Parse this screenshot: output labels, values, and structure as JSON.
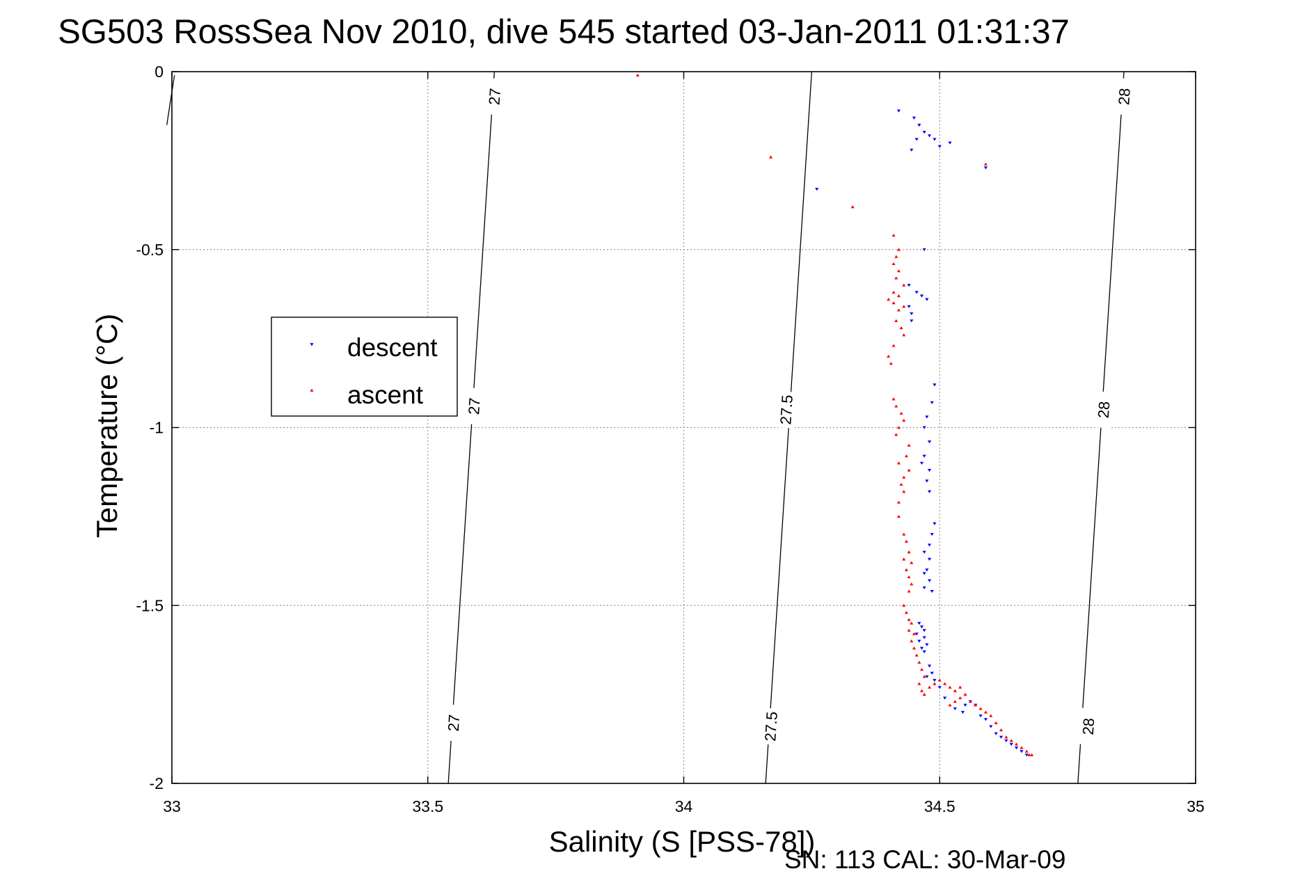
{
  "chart_data": {
    "type": "scatter",
    "title": "SG503 RossSea Nov 2010, dive 545 started 03-Jan-2011 01:31:37",
    "xlabel": "Salinity (S [PSS-78])",
    "ylabel": "Temperature (°C)",
    "footer": "SN: 113  CAL: 30-Mar-09",
    "xlim": [
      33,
      35
    ],
    "ylim": [
      -2,
      0
    ],
    "x_ticks": [
      33,
      33.5,
      34,
      34.5,
      35
    ],
    "x_tick_labels": [
      "33",
      "33.5",
      "34",
      "34.5",
      "35"
    ],
    "y_ticks": [
      0,
      -0.5,
      -1,
      -1.5,
      -2
    ],
    "y_tick_labels": [
      "0",
      "-0.5",
      "-1",
      "-1.5",
      "-2"
    ],
    "grid": true,
    "legend_position": "left-center",
    "colors": {
      "descent": "#0000ff",
      "ascent": "#ff0000",
      "contour": "#000000",
      "grid": "#9a9a9a"
    },
    "density_contours": [
      {
        "label": "27",
        "points": [
          [
            33.005,
            -0.01
          ],
          [
            32.99,
            -0.15
          ]
        ],
        "label_points": []
      },
      {
        "label": "27",
        "points": [
          [
            33.63,
            0
          ],
          [
            33.54,
            -2
          ]
        ],
        "label_points": [
          [
            33.63,
            -0.07
          ],
          [
            33.59,
            -0.94
          ],
          [
            33.55,
            -1.83
          ]
        ]
      },
      {
        "label": "27.5",
        "points": [
          [
            34.25,
            0
          ],
          [
            34.16,
            -2
          ]
        ],
        "label_points": [
          [
            34.2,
            -0.95
          ],
          [
            34.17,
            -1.84
          ]
        ]
      },
      {
        "label": "28",
        "points": [
          [
            34.86,
            0
          ],
          [
            34.77,
            -2
          ]
        ],
        "label_points": [
          [
            34.86,
            -0.07
          ],
          [
            34.82,
            -0.95
          ],
          [
            34.79,
            -1.84
          ]
        ]
      }
    ],
    "series": [
      {
        "name": "descent",
        "marker": "triangle-down",
        "points": [
          [
            34.42,
            -0.11
          ],
          [
            34.45,
            -0.13
          ],
          [
            34.46,
            -0.15
          ],
          [
            34.47,
            -0.17
          ],
          [
            34.48,
            -0.18
          ],
          [
            34.49,
            -0.19
          ],
          [
            34.5,
            -0.21
          ],
          [
            34.52,
            -0.2
          ],
          [
            34.455,
            -0.19
          ],
          [
            34.445,
            -0.22
          ],
          [
            34.26,
            -0.33
          ],
          [
            34.59,
            -0.27
          ],
          [
            34.47,
            -0.5
          ],
          [
            34.44,
            -0.6
          ],
          [
            34.455,
            -0.62
          ],
          [
            34.465,
            -0.63
          ],
          [
            34.475,
            -0.64
          ],
          [
            34.44,
            -0.66
          ],
          [
            34.445,
            -0.68
          ],
          [
            34.445,
            -0.7
          ],
          [
            34.49,
            -0.88
          ],
          [
            34.485,
            -0.93
          ],
          [
            34.475,
            -0.97
          ],
          [
            34.47,
            -1.0
          ],
          [
            34.48,
            -1.04
          ],
          [
            34.47,
            -1.08
          ],
          [
            34.465,
            -1.1
          ],
          [
            34.48,
            -1.12
          ],
          [
            34.475,
            -1.15
          ],
          [
            34.48,
            -1.18
          ],
          [
            34.49,
            -1.27
          ],
          [
            34.485,
            -1.3
          ],
          [
            34.48,
            -1.33
          ],
          [
            34.47,
            -1.35
          ],
          [
            34.48,
            -1.37
          ],
          [
            34.475,
            -1.4
          ],
          [
            34.47,
            -1.41
          ],
          [
            34.48,
            -1.43
          ],
          [
            34.47,
            -1.45
          ],
          [
            34.485,
            -1.46
          ],
          [
            34.46,
            -1.55
          ],
          [
            34.465,
            -1.56
          ],
          [
            34.47,
            -1.57
          ],
          [
            34.455,
            -1.58
          ],
          [
            34.47,
            -1.59
          ],
          [
            34.46,
            -1.6
          ],
          [
            34.475,
            -1.61
          ],
          [
            34.465,
            -1.62
          ],
          [
            34.47,
            -1.63
          ],
          [
            34.48,
            -1.67
          ],
          [
            34.485,
            -1.69
          ],
          [
            34.475,
            -1.7
          ],
          [
            34.49,
            -1.71
          ],
          [
            34.5,
            -1.73
          ],
          [
            34.51,
            -1.76
          ],
          [
            34.53,
            -1.79
          ],
          [
            34.545,
            -1.8
          ],
          [
            34.55,
            -1.78
          ],
          [
            34.56,
            -1.77
          ],
          [
            34.57,
            -1.78
          ],
          [
            34.58,
            -1.81
          ],
          [
            34.59,
            -1.82
          ],
          [
            34.6,
            -1.84
          ],
          [
            34.61,
            -1.86
          ],
          [
            34.62,
            -1.87
          ],
          [
            34.63,
            -1.88
          ],
          [
            34.64,
            -1.89
          ],
          [
            34.65,
            -1.9
          ],
          [
            34.66,
            -1.91
          ],
          [
            34.67,
            -1.92
          ]
        ]
      },
      {
        "name": "ascent",
        "marker": "triangle-up",
        "points": [
          [
            33.91,
            -0.01
          ],
          [
            34.17,
            -0.24
          ],
          [
            34.33,
            -0.38
          ],
          [
            34.59,
            -0.26
          ],
          [
            34.41,
            -0.46
          ],
          [
            34.42,
            -0.5
          ],
          [
            34.415,
            -0.52
          ],
          [
            34.41,
            -0.54
          ],
          [
            34.42,
            -0.56
          ],
          [
            34.415,
            -0.58
          ],
          [
            34.43,
            -0.6
          ],
          [
            34.41,
            -0.62
          ],
          [
            34.42,
            -0.63
          ],
          [
            34.4,
            -0.64
          ],
          [
            34.41,
            -0.65
          ],
          [
            34.42,
            -0.67
          ],
          [
            34.43,
            -0.66
          ],
          [
            34.415,
            -0.7
          ],
          [
            34.425,
            -0.72
          ],
          [
            34.43,
            -0.74
          ],
          [
            34.41,
            -0.77
          ],
          [
            34.4,
            -0.8
          ],
          [
            34.405,
            -0.82
          ],
          [
            34.41,
            -0.92
          ],
          [
            34.415,
            -0.94
          ],
          [
            34.425,
            -0.96
          ],
          [
            34.43,
            -0.98
          ],
          [
            34.42,
            -1.0
          ],
          [
            34.415,
            -1.02
          ],
          [
            34.44,
            -1.05
          ],
          [
            34.435,
            -1.08
          ],
          [
            34.42,
            -1.1
          ],
          [
            34.44,
            -1.12
          ],
          [
            34.43,
            -1.14
          ],
          [
            34.425,
            -1.16
          ],
          [
            34.43,
            -1.18
          ],
          [
            34.42,
            -1.21
          ],
          [
            34.42,
            -1.25
          ],
          [
            34.43,
            -1.3
          ],
          [
            34.435,
            -1.32
          ],
          [
            34.44,
            -1.35
          ],
          [
            34.43,
            -1.37
          ],
          [
            34.445,
            -1.38
          ],
          [
            34.435,
            -1.4
          ],
          [
            34.44,
            -1.42
          ],
          [
            34.445,
            -1.44
          ],
          [
            34.44,
            -1.46
          ],
          [
            34.43,
            -1.5
          ],
          [
            34.435,
            -1.52
          ],
          [
            34.44,
            -1.54
          ],
          [
            34.445,
            -1.55
          ],
          [
            34.44,
            -1.57
          ],
          [
            34.45,
            -1.58
          ],
          [
            34.445,
            -1.6
          ],
          [
            34.45,
            -1.62
          ],
          [
            34.455,
            -1.64
          ],
          [
            34.46,
            -1.66
          ],
          [
            34.465,
            -1.68
          ],
          [
            34.47,
            -1.7
          ],
          [
            34.46,
            -1.72
          ],
          [
            34.465,
            -1.74
          ],
          [
            34.47,
            -1.75
          ],
          [
            34.48,
            -1.73
          ],
          [
            34.49,
            -1.72
          ],
          [
            34.5,
            -1.71
          ],
          [
            34.51,
            -1.72
          ],
          [
            34.52,
            -1.73
          ],
          [
            34.53,
            -1.74
          ],
          [
            34.54,
            -1.73
          ],
          [
            34.55,
            -1.75
          ],
          [
            34.53,
            -1.77
          ],
          [
            34.52,
            -1.78
          ],
          [
            34.54,
            -1.76
          ],
          [
            34.56,
            -1.77
          ],
          [
            34.57,
            -1.78
          ],
          [
            34.58,
            -1.79
          ],
          [
            34.59,
            -1.8
          ],
          [
            34.6,
            -1.81
          ],
          [
            34.61,
            -1.83
          ],
          [
            34.62,
            -1.85
          ],
          [
            34.63,
            -1.87
          ],
          [
            34.64,
            -1.88
          ],
          [
            34.65,
            -1.89
          ],
          [
            34.66,
            -1.9
          ],
          [
            34.67,
            -1.91
          ],
          [
            34.675,
            -1.92
          ],
          [
            34.68,
            -1.92
          ]
        ]
      }
    ]
  }
}
